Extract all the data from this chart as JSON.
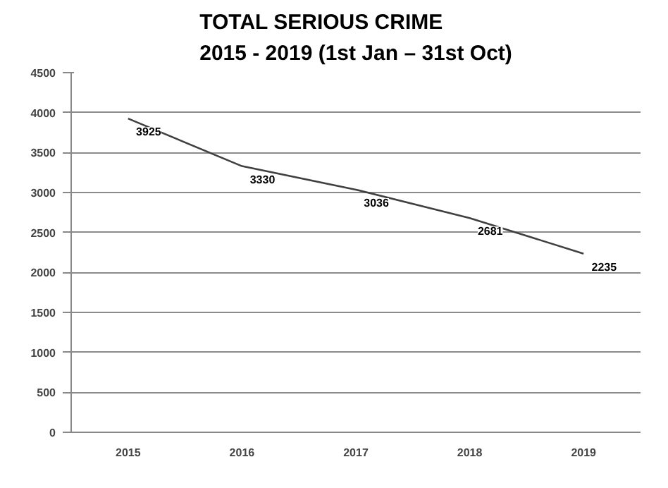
{
  "chart_data": {
    "type": "line",
    "title": "TOTAL SERIOUS CRIME\n2015 - 2019 (1st Jan – 31st Oct)",
    "categories": [
      "2015",
      "2016",
      "2017",
      "2018",
      "2019"
    ],
    "series": [
      {
        "color": "#404040",
        "values": [
          3925,
          3330,
          3036,
          2681,
          2235
        ]
      }
    ],
    "ylim": [
      0,
      4500
    ],
    "yticks": [
      0,
      500,
      1000,
      1500,
      2000,
      2500,
      3000,
      3500,
      4000,
      4500
    ],
    "grid": "y",
    "data_labels": true,
    "marker": "none",
    "line_style": "solid"
  }
}
